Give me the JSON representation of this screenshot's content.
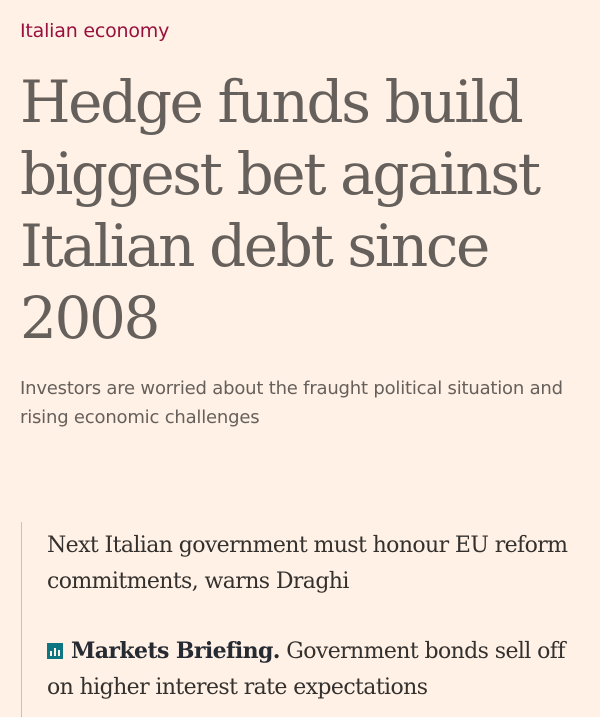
{
  "topic": {
    "label": "Italian economy"
  },
  "article": {
    "headline": "Hedge funds build biggest bet against Italian debt since 2008",
    "standfirst": "Investors are worried about the fraught political situation and rising economic challenges"
  },
  "related": [
    {
      "title": "Next Italian government must honour EU reform commitments, warns Draghi"
    },
    {
      "icon": "bar-chart-icon",
      "brand": "Markets Briefing.",
      "title": " Government bonds sell off on higher interest rate expectations"
    }
  ],
  "colors": {
    "background": "#fff1e5",
    "topic": "#990f3d",
    "headline": "#66605c",
    "related_text": "#33302e",
    "icon": "#0d7680"
  }
}
